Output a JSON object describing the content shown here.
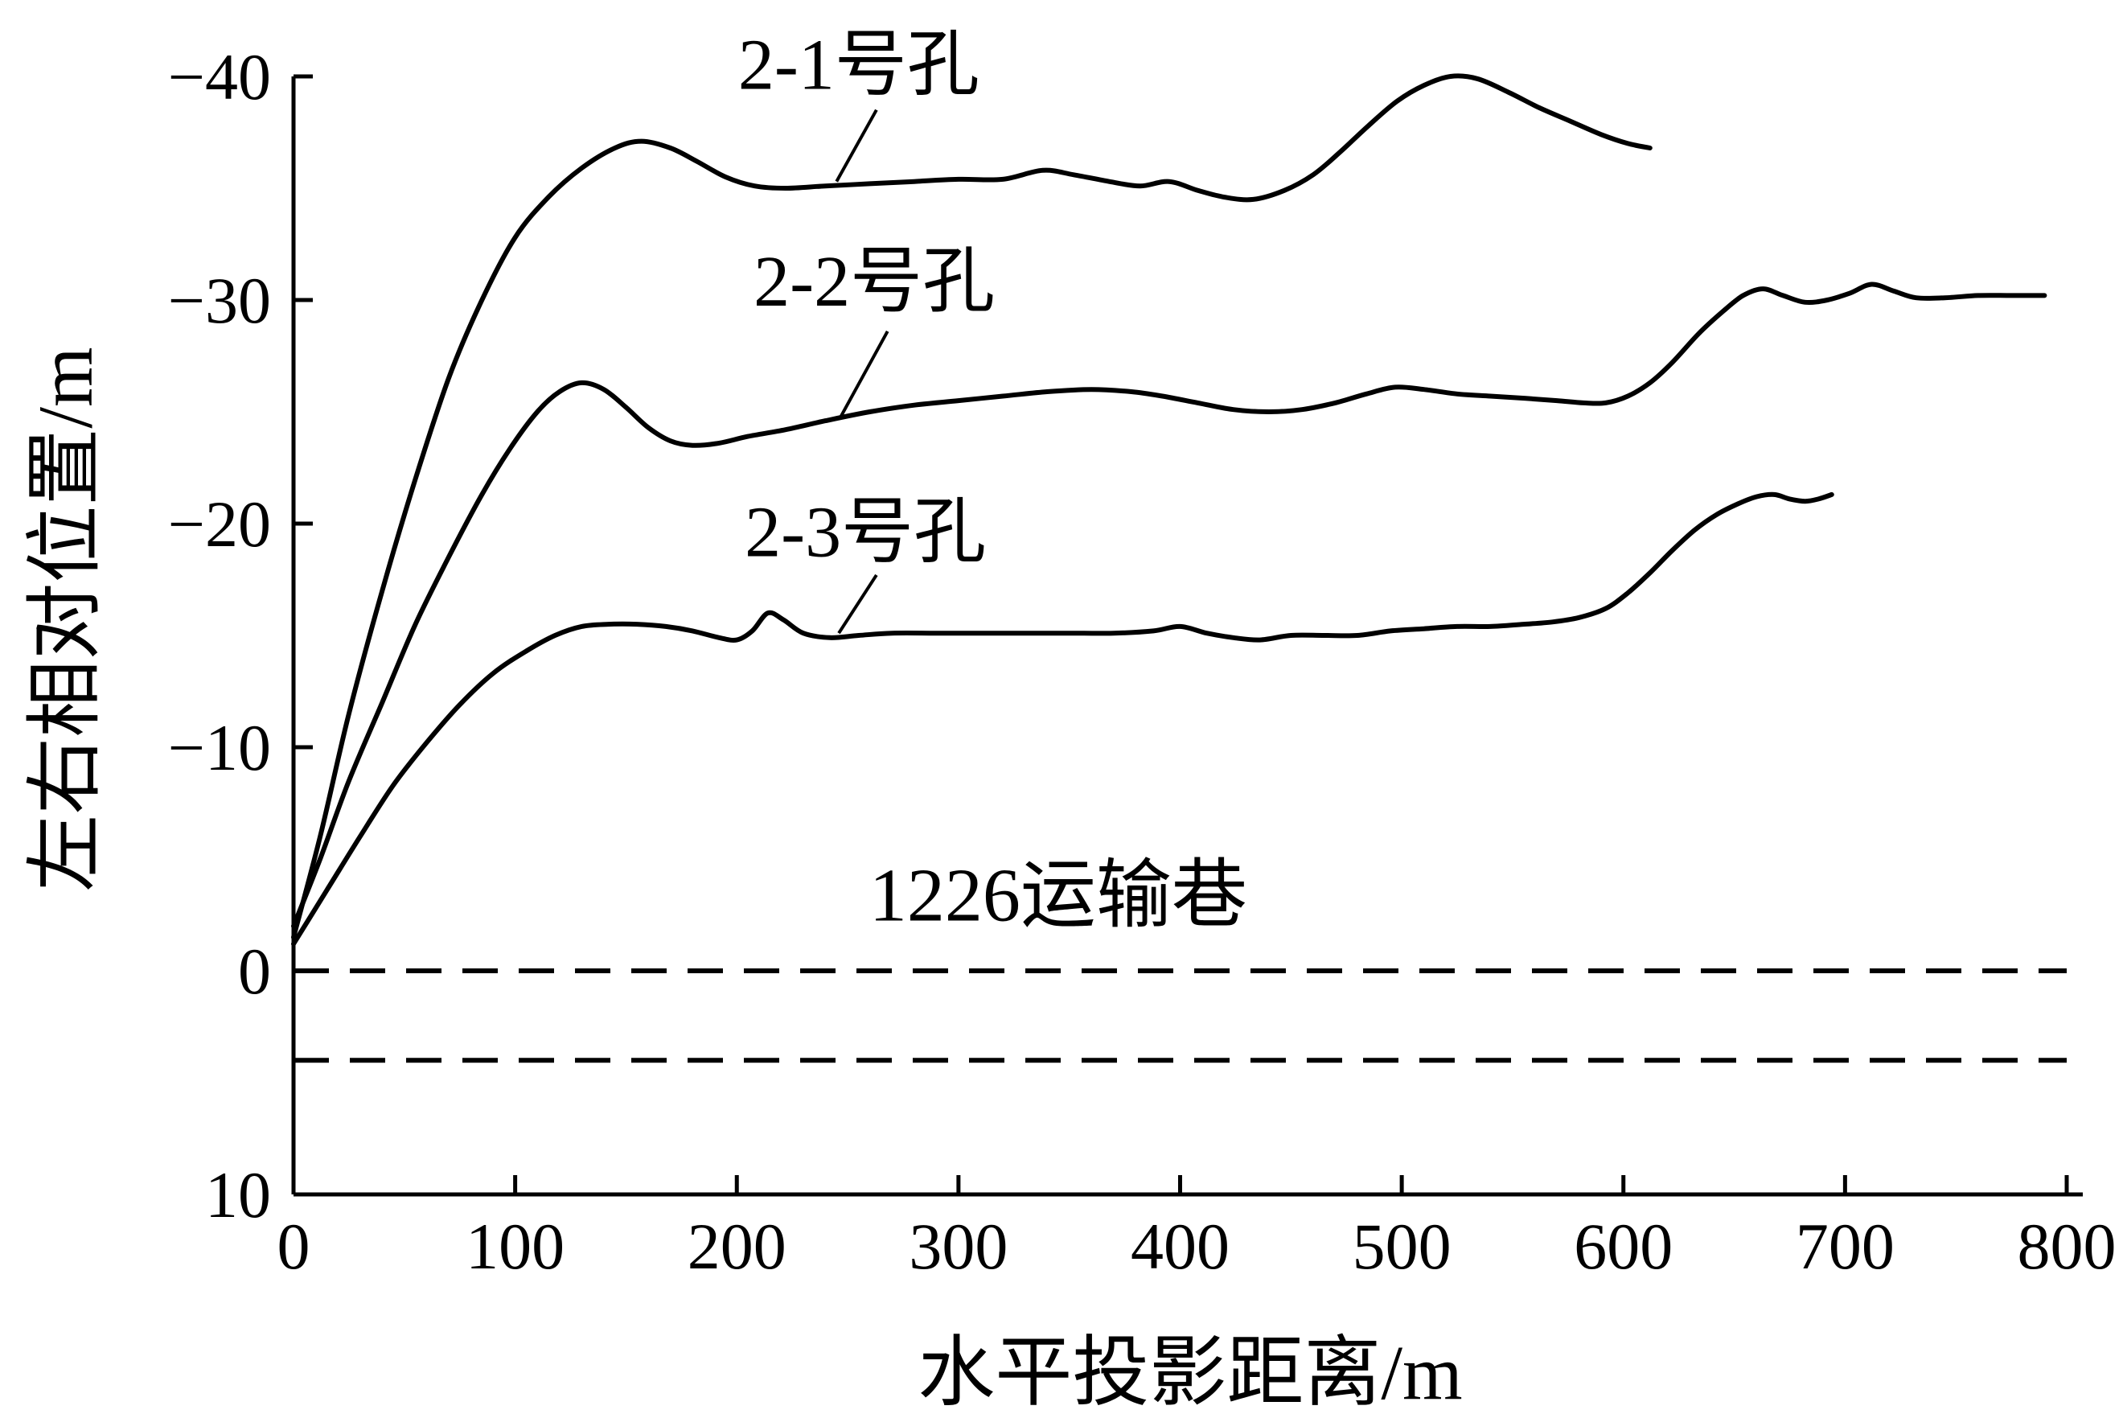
{
  "colors": {
    "line": "#000000",
    "background": "#ffffff"
  },
  "chart_data": {
    "type": "line",
    "title": "",
    "xlabel": "水平投影距离/m",
    "ylabel": "左右相对位置/m",
    "xlim": [
      0,
      800
    ],
    "ylim": [
      -40,
      10
    ],
    "y_inverted": true,
    "grid": false,
    "legend_position": "none",
    "xticks": [
      0,
      100,
      200,
      300,
      400,
      500,
      600,
      700,
      800
    ],
    "xtick_labels": [
      "0",
      "100",
      "200",
      "300",
      "400",
      "500",
      "600",
      "700",
      "800"
    ],
    "yticks": [
      -40,
      -30,
      -20,
      -10,
      0,
      10
    ],
    "ytick_labels": [
      "−40",
      "−30",
      "−20",
      "−10",
      "0",
      "10"
    ],
    "series": [
      {
        "id": "2-1",
        "name": "2-1号孔",
        "points": [
          [
            0,
            -1.5
          ],
          [
            12,
            -6
          ],
          [
            25,
            -11.5
          ],
          [
            40,
            -17
          ],
          [
            55,
            -22
          ],
          [
            70,
            -26.5
          ],
          [
            85,
            -30
          ],
          [
            100,
            -32.8
          ],
          [
            115,
            -34.6
          ],
          [
            130,
            -35.9
          ],
          [
            145,
            -36.8
          ],
          [
            157,
            -37.1
          ],
          [
            170,
            -36.8
          ],
          [
            182,
            -36.2
          ],
          [
            195,
            -35.5
          ],
          [
            208,
            -35.1
          ],
          [
            222,
            -35.0
          ],
          [
            240,
            -35.1
          ],
          [
            260,
            -35.2
          ],
          [
            280,
            -35.3
          ],
          [
            300,
            -35.4
          ],
          [
            320,
            -35.4
          ],
          [
            338,
            -35.8
          ],
          [
            352,
            -35.6
          ],
          [
            368,
            -35.3
          ],
          [
            382,
            -35.1
          ],
          [
            395,
            -35.3
          ],
          [
            408,
            -34.9
          ],
          [
            420,
            -34.6
          ],
          [
            433,
            -34.5
          ],
          [
            447,
            -34.9
          ],
          [
            460,
            -35.6
          ],
          [
            472,
            -36.6
          ],
          [
            485,
            -37.8
          ],
          [
            498,
            -38.9
          ],
          [
            510,
            -39.6
          ],
          [
            522,
            -40.0
          ],
          [
            534,
            -39.9
          ],
          [
            548,
            -39.3
          ],
          [
            562,
            -38.6
          ],
          [
            576,
            -38.0
          ],
          [
            590,
            -37.4
          ],
          [
            602,
            -37.0
          ],
          [
            612,
            -36.8
          ]
        ]
      },
      {
        "id": "2-2",
        "name": "2-2号孔",
        "points": [
          [
            0,
            -2
          ],
          [
            12,
            -5
          ],
          [
            25,
            -8.5
          ],
          [
            40,
            -12
          ],
          [
            55,
            -15.5
          ],
          [
            70,
            -18.5
          ],
          [
            85,
            -21.3
          ],
          [
            98,
            -23.4
          ],
          [
            110,
            -25.0
          ],
          [
            120,
            -25.9
          ],
          [
            130,
            -26.3
          ],
          [
            140,
            -26.0
          ],
          [
            150,
            -25.2
          ],
          [
            160,
            -24.3
          ],
          [
            170,
            -23.7
          ],
          [
            180,
            -23.5
          ],
          [
            192,
            -23.6
          ],
          [
            205,
            -23.9
          ],
          [
            222,
            -24.2
          ],
          [
            240,
            -24.6
          ],
          [
            260,
            -25.0
          ],
          [
            280,
            -25.3
          ],
          [
            300,
            -25.5
          ],
          [
            320,
            -25.7
          ],
          [
            340,
            -25.9
          ],
          [
            360,
            -26.0
          ],
          [
            378,
            -25.9
          ],
          [
            392,
            -25.7
          ],
          [
            408,
            -25.4
          ],
          [
            424,
            -25.1
          ],
          [
            440,
            -25.0
          ],
          [
            455,
            -25.1
          ],
          [
            470,
            -25.4
          ],
          [
            484,
            -25.8
          ],
          [
            497,
            -26.1
          ],
          [
            510,
            -26.0
          ],
          [
            525,
            -25.8
          ],
          [
            540,
            -25.7
          ],
          [
            556,
            -25.6
          ],
          [
            570,
            -25.5
          ],
          [
            582,
            -25.4
          ],
          [
            592,
            -25.4
          ],
          [
            602,
            -25.7
          ],
          [
            612,
            -26.3
          ],
          [
            622,
            -27.2
          ],
          [
            634,
            -28.5
          ],
          [
            645,
            -29.5
          ],
          [
            654,
            -30.2
          ],
          [
            663,
            -30.5
          ],
          [
            672,
            -30.2
          ],
          [
            682,
            -29.9
          ],
          [
            692,
            -30.0
          ],
          [
            702,
            -30.3
          ],
          [
            712,
            -30.7
          ],
          [
            722,
            -30.4
          ],
          [
            732,
            -30.1
          ],
          [
            745,
            -30.1
          ],
          [
            760,
            -30.2
          ],
          [
            775,
            -30.2
          ],
          [
            790,
            -30.2
          ]
        ]
      },
      {
        "id": "2-3",
        "name": "2-3号孔",
        "points": [
          [
            0,
            -1.2
          ],
          [
            15,
            -3.6
          ],
          [
            30,
            -6.0
          ],
          [
            45,
            -8.3
          ],
          [
            60,
            -10.2
          ],
          [
            75,
            -11.9
          ],
          [
            90,
            -13.3
          ],
          [
            105,
            -14.3
          ],
          [
            118,
            -15.0
          ],
          [
            130,
            -15.4
          ],
          [
            142,
            -15.5
          ],
          [
            155,
            -15.5
          ],
          [
            168,
            -15.4
          ],
          [
            180,
            -15.2
          ],
          [
            192,
            -14.9
          ],
          [
            200,
            -14.8
          ],
          [
            207,
            -15.2
          ],
          [
            214,
            -16.0
          ],
          [
            221,
            -15.7
          ],
          [
            230,
            -15.1
          ],
          [
            242,
            -14.9
          ],
          [
            255,
            -15.0
          ],
          [
            270,
            -15.1
          ],
          [
            290,
            -15.1
          ],
          [
            310,
            -15.1
          ],
          [
            330,
            -15.1
          ],
          [
            350,
            -15.1
          ],
          [
            370,
            -15.1
          ],
          [
            388,
            -15.2
          ],
          [
            400,
            -15.4
          ],
          [
            412,
            -15.1
          ],
          [
            424,
            -14.9
          ],
          [
            436,
            -14.8
          ],
          [
            450,
            -15.0
          ],
          [
            465,
            -15.0
          ],
          [
            480,
            -15.0
          ],
          [
            495,
            -15.2
          ],
          [
            510,
            -15.3
          ],
          [
            525,
            -15.4
          ],
          [
            540,
            -15.4
          ],
          [
            555,
            -15.5
          ],
          [
            568,
            -15.6
          ],
          [
            580,
            -15.8
          ],
          [
            592,
            -16.2
          ],
          [
            602,
            -16.9
          ],
          [
            612,
            -17.8
          ],
          [
            622,
            -18.8
          ],
          [
            632,
            -19.7
          ],
          [
            642,
            -20.4
          ],
          [
            652,
            -20.9
          ],
          [
            660,
            -21.2
          ],
          [
            668,
            -21.3
          ],
          [
            675,
            -21.1
          ],
          [
            682,
            -21.0
          ],
          [
            688,
            -21.1
          ],
          [
            694,
            -21.3
          ]
        ]
      }
    ],
    "reference_lines": [
      {
        "id": "roadway-upper",
        "y": 0,
        "style": "dashed"
      },
      {
        "id": "roadway-lower",
        "y": 4,
        "style": "dashed"
      }
    ],
    "annotations": [
      {
        "text": "2-1号孔",
        "x": 255,
        "y": -40.6,
        "size": 90,
        "leader": [
          [
            263,
            -38.5
          ],
          [
            245,
            -35.3
          ]
        ]
      },
      {
        "text": "2-2号孔",
        "x": 262,
        "y": -30.9,
        "size": 90,
        "leader": [
          [
            268,
            -28.6
          ],
          [
            247,
            -24.8
          ]
        ]
      },
      {
        "text": "2-3号孔",
        "x": 258,
        "y": -19.7,
        "size": 90,
        "leader": [
          [
            263,
            -17.7
          ],
          [
            246,
            -15.1
          ]
        ]
      },
      {
        "text": "1226运输巷",
        "x": 345,
        "y": -3.4,
        "size": 94
      }
    ]
  }
}
